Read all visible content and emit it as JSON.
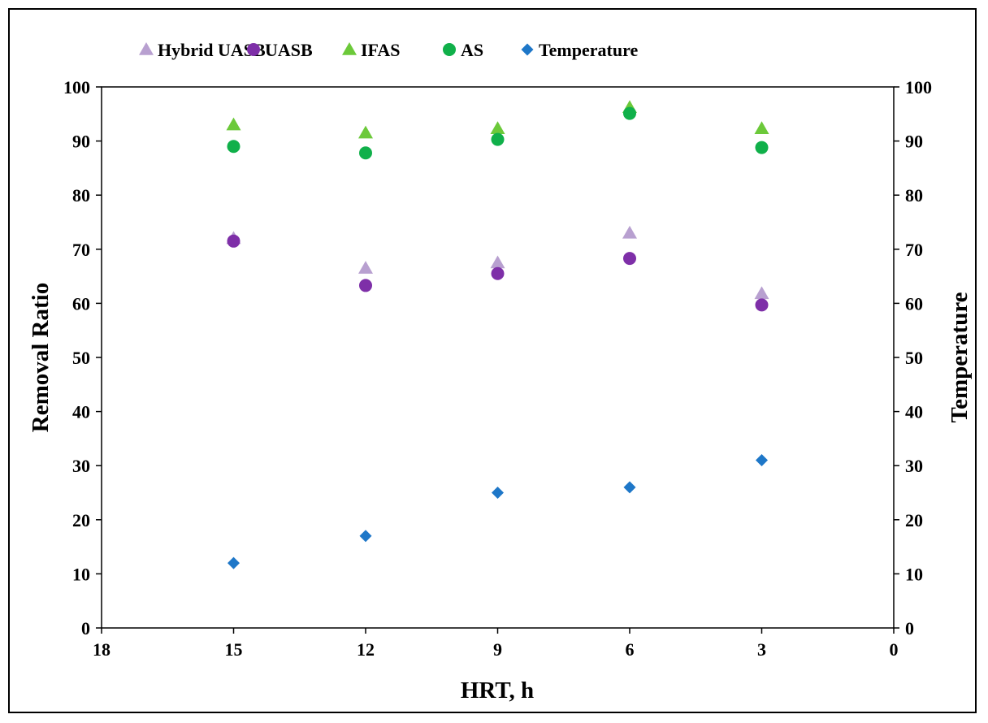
{
  "chart_data": {
    "type": "scatter",
    "xlabel": "HRT, h",
    "ylabel": "Removal Ratio",
    "y2label": "Temperature",
    "xlim": [
      18,
      0
    ],
    "x_reversed": true,
    "ylim": [
      0,
      100
    ],
    "y2lim": [
      0,
      100
    ],
    "x_ticks": [
      "18",
      "15",
      "12",
      "9",
      "6",
      "3",
      "0"
    ],
    "y_ticks": [
      "0",
      "10",
      "20",
      "30",
      "40",
      "50",
      "60",
      "70",
      "80",
      "90",
      "100"
    ],
    "y2_ticks": [
      "0",
      "10",
      "20",
      "30",
      "40",
      "50",
      "60",
      "70",
      "80",
      "90",
      "100"
    ],
    "grid": false,
    "legend_position": "top",
    "x": [
      15,
      12,
      9,
      6,
      3
    ],
    "series": [
      {
        "name": "Hybrid UASB",
        "marker": "triangle",
        "color": "#b8a0d0",
        "axis": "left",
        "values": [
          72,
          66.5,
          67.5,
          73,
          61.8
        ]
      },
      {
        "name": "UASB",
        "marker": "circle",
        "color": "#7e2fa8",
        "axis": "left",
        "values": [
          71.5,
          63.3,
          65.5,
          68.3,
          59.7
        ]
      },
      {
        "name": "IFAS",
        "marker": "triangle",
        "color": "#6cc93a",
        "axis": "left",
        "values": [
          93,
          91.5,
          92.3,
          96.2,
          92.3
        ]
      },
      {
        "name": "AS",
        "marker": "circle",
        "color": "#10b04a",
        "axis": "left",
        "values": [
          89,
          87.8,
          90.3,
          95.1,
          88.8
        ]
      },
      {
        "name": "Temperature",
        "marker": "diamond",
        "color": "#1e77c8",
        "axis": "right",
        "values": [
          12,
          17,
          25,
          26,
          31
        ]
      }
    ]
  }
}
